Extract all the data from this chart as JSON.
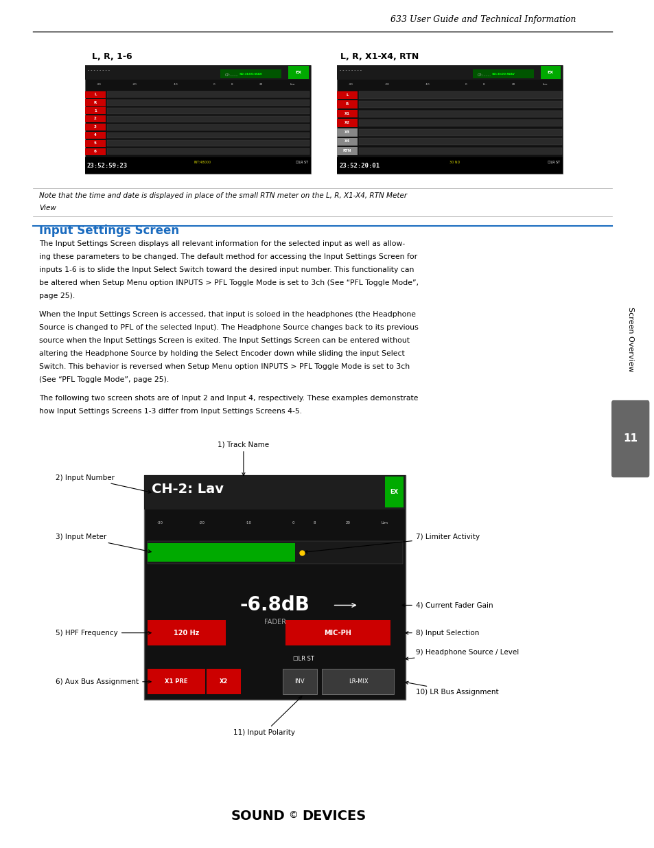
{
  "page_header": "633 User Guide and Technical Information",
  "page_num": "11",
  "section_title": "Input Settings Screen",
  "section_title_color": "#1a6bbf",
  "note_text_line1": "Note that the time and date is displayed in place of the small RTN meter on the L, R, X1-X4, RTN Meter",
  "note_text_line2": "View",
  "label_lr16": "L, R, 1-6",
  "label_lrx14": "L, R, X1-X4, RTN",
  "bg_color": "#ffffff",
  "screen_bg": "#111111",
  "red_label_color": "#cc0000",
  "gray_label_color": "#888888",
  "green_color": "#00aa00",
  "yellow_color": "#ffcc00",
  "para1_lines": [
    "The Input Settings Screen displays all relevant information for the selected input as well as allow-",
    "ing these parameters to be changed. The default method for accessing the Input Settings Screen for",
    "inputs 1-6 is to slide the Input Select Switch toward the desired input number. This functionality can",
    "be altered when Setup Menu option INPUTS > PFL Toggle Mode is set to 3ch (See “PFL Toggle Mode”,",
    "page 25)."
  ],
  "para2_lines": [
    "When the Input Settings Screen is accessed, that input is soloed in the headphones (the Headphone",
    "Source is changed to PFL of the selected Input). The Headphone Source changes back to its previous",
    "source when the Input Settings Screen is exited. The Input Settings Screen can be entered without",
    "altering the Headphone Source by holding the Select Encoder down while sliding the input Select",
    "Switch. This behavior is reversed when Setup Menu option INPUTS > PFL Toggle Mode is set to 3ch",
    "(See “PFL Toggle Mode”, page 25)."
  ],
  "para3_lines": [
    "The following two screen shots are of Input 2 and Input 4, respectively. These examples demonstrate",
    "how Input Settings Screens 1-3 differ from Input Settings Screens 4-5."
  ]
}
